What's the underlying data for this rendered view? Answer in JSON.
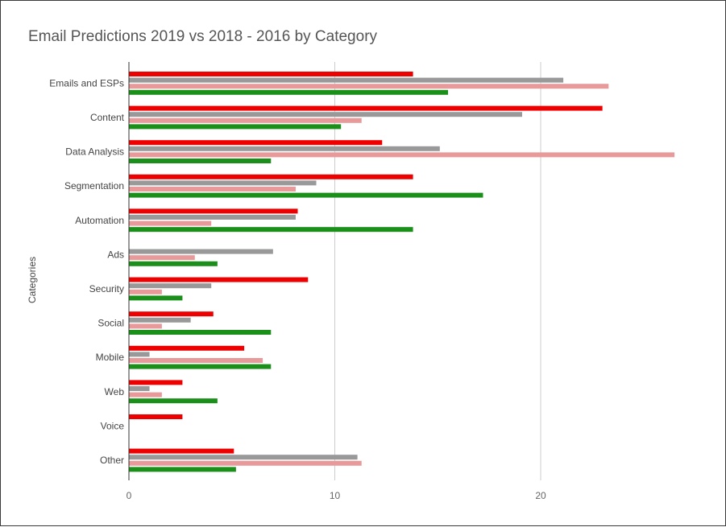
{
  "chart_data": {
    "type": "bar",
    "orientation": "horizontal",
    "title": "Email Predictions 2019 vs 2018 - 2016 by Category",
    "ylabel": "Categories",
    "xlabel": "",
    "xlim": [
      0,
      27
    ],
    "x_ticks": [
      "0",
      "10",
      "20"
    ],
    "grid": true,
    "legend": "none",
    "categories": [
      "Emails and ESPs",
      "Content",
      "Data Analysis",
      "Segmentation",
      "Automation",
      "Ads",
      "Security",
      "Social",
      "Mobile",
      "Web",
      "Voice",
      "Other"
    ],
    "series": [
      {
        "color": "#ee0000",
        "values": [
          13.8,
          23.0,
          12.3,
          13.8,
          8.2,
          0,
          8.7,
          4.1,
          5.6,
          2.6,
          2.6,
          5.1
        ]
      },
      {
        "color": "#999999",
        "values": [
          21.1,
          19.1,
          15.1,
          9.1,
          8.1,
          7.0,
          4.0,
          3.0,
          1.0,
          1.0,
          0,
          11.1
        ]
      },
      {
        "color": "#e89a9a",
        "values": [
          23.3,
          11.3,
          26.5,
          8.1,
          4.0,
          3.2,
          1.6,
          1.6,
          6.5,
          1.6,
          0,
          11.3
        ]
      },
      {
        "color": "#1a8f1a",
        "values": [
          15.5,
          10.3,
          6.9,
          17.2,
          13.8,
          4.3,
          2.6,
          6.9,
          6.9,
          4.3,
          0,
          5.2
        ]
      }
    ]
  }
}
